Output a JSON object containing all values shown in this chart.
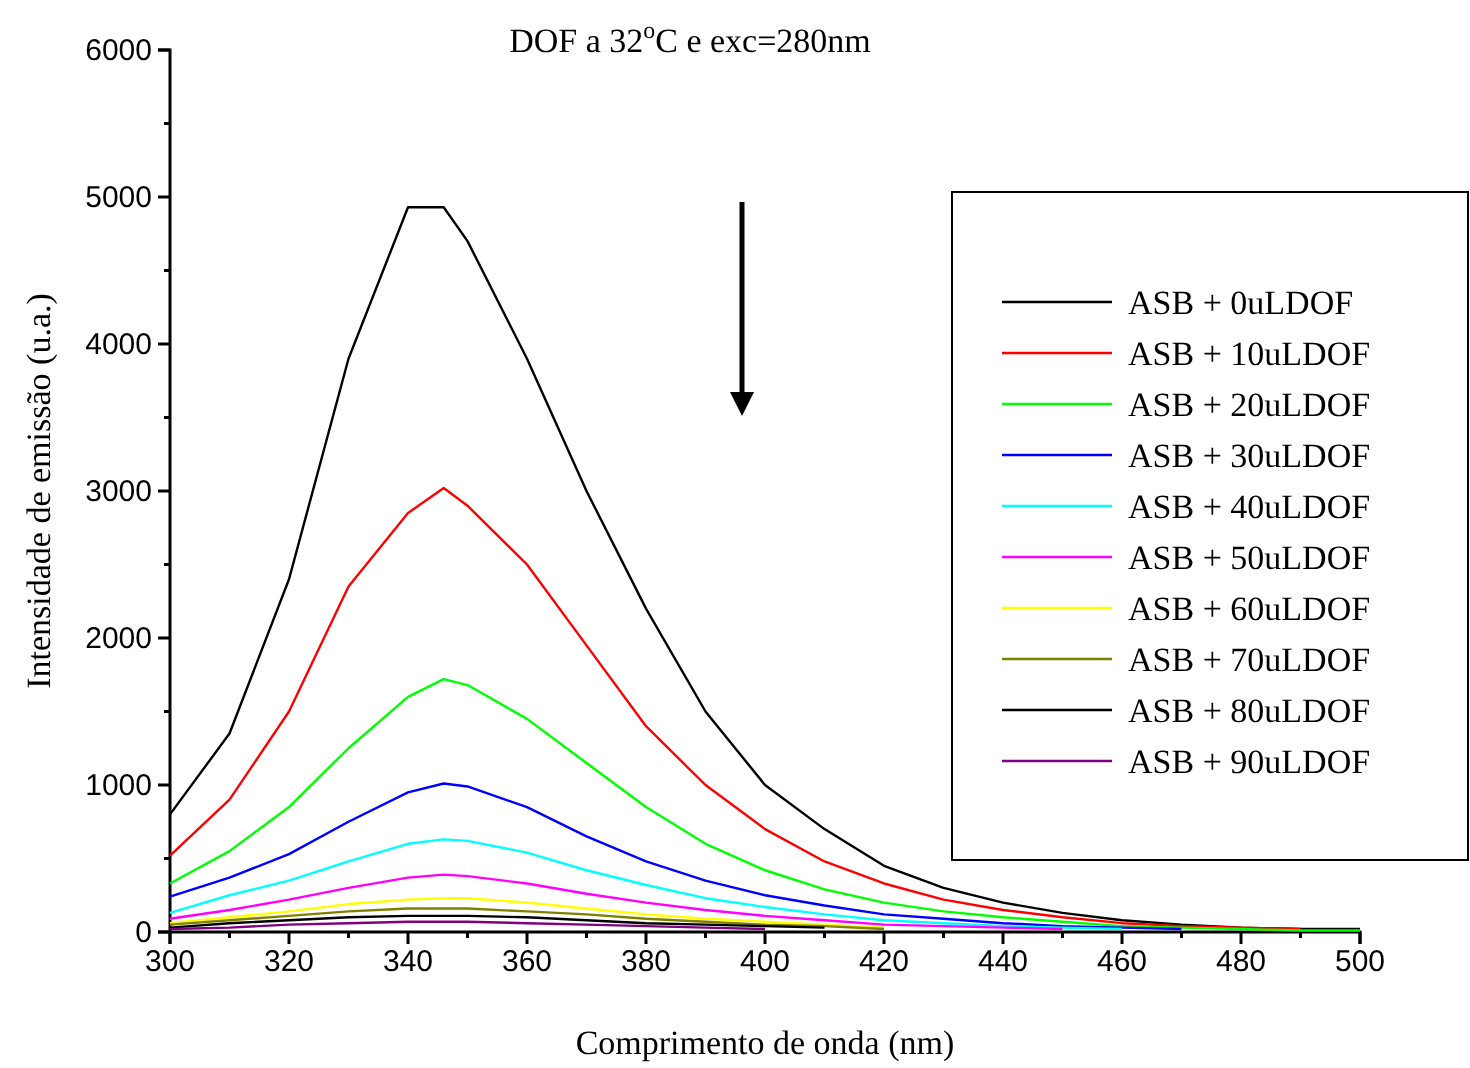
{
  "chart_data": {
    "type": "line",
    "title": "DOF a 32$^{o}$C e exc=280nm",
    "xlabel": "Comprimento de onda (nm)",
    "ylabel": "Intensidade de emissão (u.a.)",
    "x": [
      300,
      310,
      320,
      330,
      340,
      346,
      350,
      360,
      370,
      380,
      390,
      400,
      410,
      420,
      430,
      440,
      450,
      460,
      470,
      480,
      490,
      500
    ],
    "xlim": [
      300,
      500
    ],
    "xticks": [
      300,
      320,
      340,
      360,
      380,
      400,
      420,
      440,
      460,
      480,
      500
    ],
    "ylim": [
      0,
      6000
    ],
    "yticks": [
      0,
      1000,
      2000,
      3000,
      4000,
      5000,
      6000
    ],
    "grid": false,
    "legend": "right",
    "marker": "none",
    "line_style": "solid",
    "series": [
      {
        "name": "ASB + 0uLDOF",
        "color": "#000000",
        "values": [
          800,
          1350,
          2400,
          3900,
          4930,
          4930,
          4700,
          3900,
          3000,
          2200,
          1500,
          1000,
          700,
          450,
          300,
          200,
          130,
          80,
          50,
          30,
          20,
          20
        ]
      },
      {
        "name": "ASB + 10uLDOF",
        "color": "#ff0000",
        "values": [
          520,
          900,
          1500,
          2350,
          2850,
          3020,
          2900,
          2500,
          1950,
          1400,
          1000,
          700,
          480,
          330,
          220,
          150,
          100,
          60,
          40,
          30,
          20,
          null
        ]
      },
      {
        "name": "ASB + 20uLDOF",
        "color": "#00ff00",
        "values": [
          330,
          550,
          850,
          1250,
          1600,
          1720,
          1680,
          1450,
          1150,
          850,
          600,
          420,
          290,
          200,
          140,
          100,
          70,
          40,
          30,
          20,
          10,
          10
        ]
      },
      {
        "name": "ASB + 30uLDOF",
        "color": "#0000ff",
        "values": [
          240,
          370,
          530,
          750,
          950,
          1010,
          990,
          850,
          650,
          480,
          350,
          250,
          180,
          120,
          90,
          60,
          40,
          30,
          20,
          null,
          null,
          null
        ]
      },
      {
        "name": "ASB + 40uLDOF",
        "color": "#00ffff",
        "values": [
          130,
          250,
          350,
          480,
          600,
          630,
          620,
          540,
          420,
          320,
          230,
          170,
          120,
          80,
          60,
          40,
          30,
          20,
          null,
          null,
          null,
          null
        ]
      },
      {
        "name": "ASB + 50uLDOF",
        "color": "#ff00ff",
        "values": [
          90,
          150,
          220,
          300,
          370,
          390,
          380,
          330,
          260,
          200,
          150,
          110,
          80,
          50,
          40,
          30,
          20,
          null,
          null,
          null,
          null,
          null
        ]
      },
      {
        "name": "ASB + 60uLDOF",
        "color": "#ffff00",
        "values": [
          60,
          100,
          140,
          190,
          220,
          230,
          230,
          200,
          160,
          120,
          90,
          70,
          50,
          30,
          null,
          null,
          null,
          null,
          null,
          null,
          null,
          null
        ]
      },
      {
        "name": "ASB + 70uLDOF",
        "color": "#808000",
        "values": [
          50,
          80,
          110,
          140,
          160,
          160,
          160,
          140,
          120,
          90,
          70,
          50,
          40,
          20,
          null,
          null,
          null,
          null,
          null,
          null,
          null,
          null
        ]
      },
      {
        "name": "ASB + 80uLDOF",
        "color": "#000000",
        "values": [
          30,
          60,
          80,
          100,
          110,
          110,
          110,
          100,
          80,
          60,
          50,
          40,
          30,
          null,
          null,
          null,
          null,
          null,
          null,
          null,
          null,
          null
        ]
      },
      {
        "name": "ASB + 90uLDOF",
        "color": "#800080",
        "values": [
          20,
          30,
          50,
          60,
          70,
          70,
          70,
          60,
          50,
          40,
          30,
          20,
          null,
          null,
          null,
          null,
          null,
          null,
          null,
          null,
          null,
          null
        ]
      }
    ]
  }
}
